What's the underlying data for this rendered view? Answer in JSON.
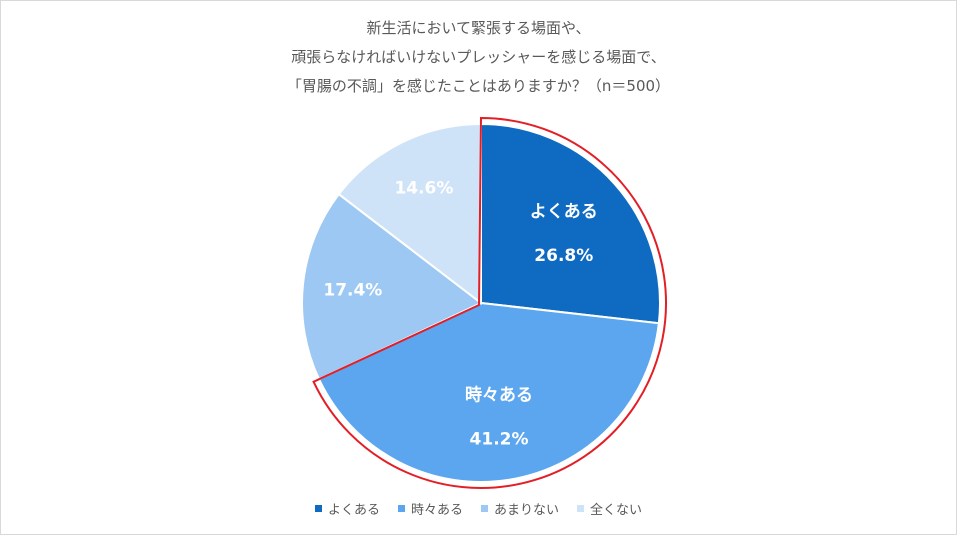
{
  "chart_data": {
    "type": "pie",
    "title_lines": [
      "新生活において緊張する場面や、",
      "頑張らなければいけないプレッシャーを感じる場面で、",
      "「胃腸の不調」を感じたことはありますか？（n＝500）"
    ],
    "legend_position": "bottom",
    "slices": [
      {
        "name": "よくある",
        "value": 26.8,
        "label": "26.8%",
        "color": "#0F6BC2",
        "show_name": true
      },
      {
        "name": "時々ある",
        "value": 41.2,
        "label": "41.2%",
        "color": "#5BA6EE",
        "show_name": true
      },
      {
        "name": "あまりない",
        "value": 17.4,
        "label": "17.4%",
        "color": "#9DC8F3",
        "show_name": false
      },
      {
        "name": "全くない",
        "value": 14.6,
        "label": "14.6%",
        "color": "#CFE3F8",
        "show_name": false
      }
    ],
    "highlight": {
      "slices": [
        "よくある",
        "時々ある"
      ],
      "color": "#E21F26"
    }
  }
}
